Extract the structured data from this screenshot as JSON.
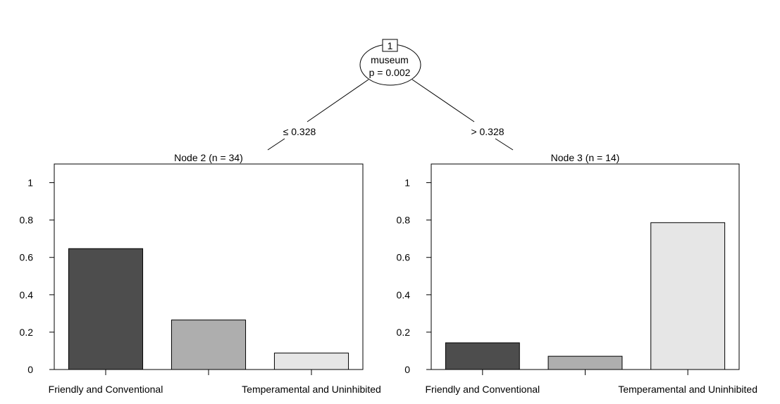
{
  "tree": {
    "root": {
      "id": "1",
      "variable": "museum",
      "pvalue": "p = 0.002"
    },
    "edges": [
      {
        "label": "≤ 0.328"
      },
      {
        "label": "> 0.328"
      }
    ]
  },
  "chart_data": [
    {
      "type": "bar",
      "title": "Node 2 (n = 34)",
      "categories": [
        "Friendly and Conventional",
        "",
        "Temperamental and Uninhibited"
      ],
      "tick_labels": [
        "Friendly and Conventional",
        "Temperamental and Uninhibited"
      ],
      "values": [
        0.647,
        0.265,
        0.088
      ],
      "colors": [
        "#4d4d4d",
        "#aeaeae",
        "#e6e6e6"
      ],
      "ylim": [
        0,
        1.1
      ],
      "yticks": [
        "0",
        "0.2",
        "0.4",
        "0.6",
        "0.8",
        "1"
      ],
      "grid": false
    },
    {
      "type": "bar",
      "title": "Node 3 (n = 14)",
      "categories": [
        "Friendly and Conventional",
        "",
        "Temperamental and Uninhibited"
      ],
      "tick_labels": [
        "Friendly and Conventional",
        "Temperamental and Uninhibited"
      ],
      "values": [
        0.143,
        0.071,
        0.786
      ],
      "colors": [
        "#4d4d4d",
        "#aeaeae",
        "#e6e6e6"
      ],
      "ylim": [
        0,
        1.1
      ],
      "yticks": [
        "0",
        "0.2",
        "0.4",
        "0.6",
        "0.8",
        "1"
      ],
      "grid": false
    }
  ]
}
